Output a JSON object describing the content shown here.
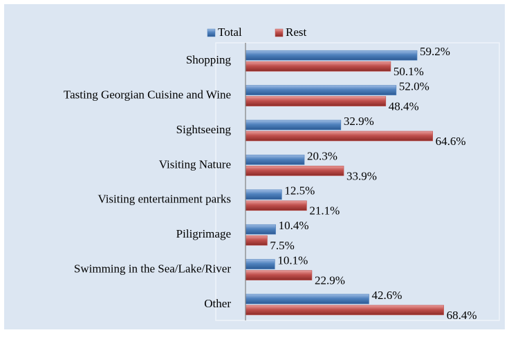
{
  "chart_data": {
    "type": "bar",
    "orientation": "horizontal",
    "categories": [
      "Shopping",
      "Tasting Georgian Cuisine and Wine",
      "Sightseeing",
      "Visiting Nature",
      "Visiting entertainment parks",
      "Piligrimage",
      "Swimming in the Sea/Lake/River",
      "Other"
    ],
    "series": [
      {
        "name": "Total",
        "color": "#4f81bd",
        "values": [
          59.2,
          52.0,
          32.9,
          20.3,
          12.5,
          10.4,
          10.1,
          42.6
        ],
        "value_labels": [
          "59.2%",
          "52.0%",
          "32.9%",
          "20.3%",
          "12.5%",
          "10.4%",
          "10.1%",
          "42.6%"
        ]
      },
      {
        "name": "Rest",
        "color": "#c0504d",
        "values": [
          50.1,
          48.4,
          64.6,
          33.9,
          21.1,
          7.5,
          22.9,
          68.4
        ],
        "value_labels": [
          "50.1%",
          "48.4%",
          "64.6%",
          "33.9%",
          "21.1%",
          "7.5%",
          "22.9%",
          "68.4%"
        ]
      }
    ],
    "legend": "top"
  }
}
